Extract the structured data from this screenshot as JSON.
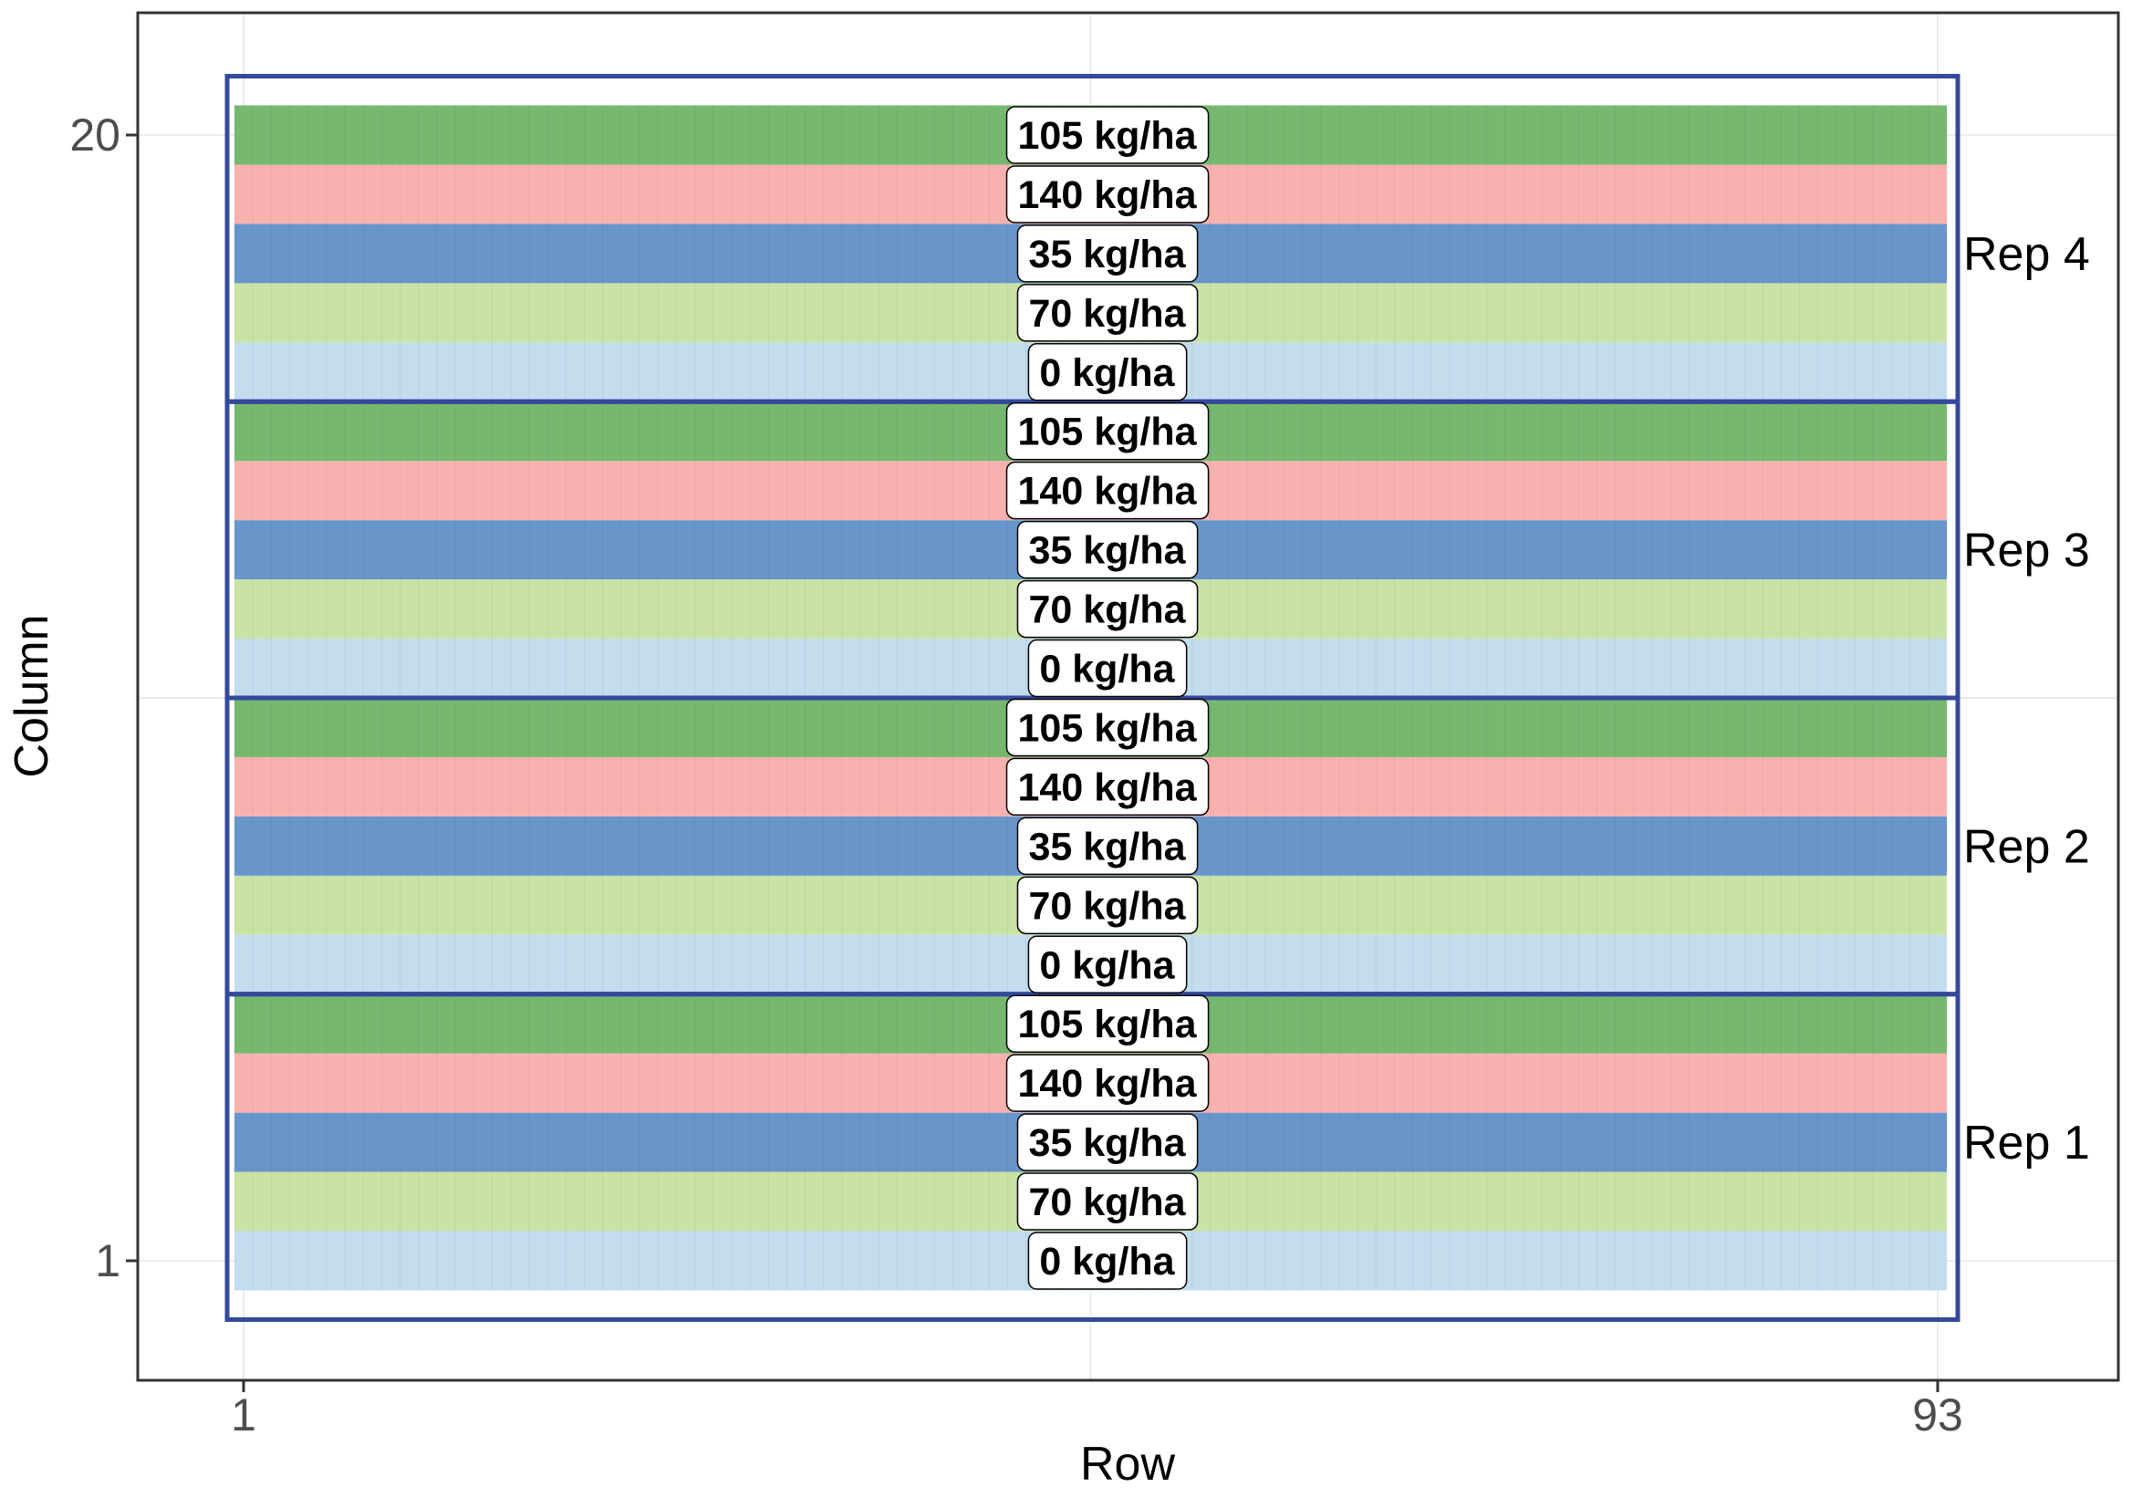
{
  "chart_data": {
    "type": "heatmap",
    "title": "",
    "xlabel": "Row",
    "ylabel": "Column",
    "xlim": [
      1,
      93
    ],
    "ylim": [
      1,
      20
    ],
    "x_ticks": [
      "1",
      "93"
    ],
    "y_ticks": [
      "1",
      "20"
    ],
    "grid": true,
    "legend": "none",
    "rows_per_plot": 93,
    "reps": [
      {
        "name": "Rep 1",
        "columns": [
          1,
          5
        ]
      },
      {
        "name": "Rep 2",
        "columns": [
          6,
          10
        ]
      },
      {
        "name": "Rep 3",
        "columns": [
          11,
          15
        ]
      },
      {
        "name": "Rep 4",
        "columns": [
          16,
          20
        ]
      }
    ],
    "plots": [
      {
        "column": 1,
        "rep": "Rep 1",
        "label": "0 kg/ha",
        "color": "#c3dcee"
      },
      {
        "column": 2,
        "rep": "Rep 1",
        "label": "70 kg/ha",
        "color": "#c9e2a6"
      },
      {
        "column": 3,
        "rep": "Rep 1",
        "label": "35 kg/ha",
        "color": "#6996ca"
      },
      {
        "column": 4,
        "rep": "Rep 1",
        "label": "140 kg/ha",
        "color": "#f7b2b0"
      },
      {
        "column": 5,
        "rep": "Rep 1",
        "label": "105 kg/ha",
        "color": "#76b86f"
      },
      {
        "column": 6,
        "rep": "Rep 2",
        "label": "0 kg/ha",
        "color": "#c3dcee"
      },
      {
        "column": 7,
        "rep": "Rep 2",
        "label": "70 kg/ha",
        "color": "#c9e2a6"
      },
      {
        "column": 8,
        "rep": "Rep 2",
        "label": "35 kg/ha",
        "color": "#6996ca"
      },
      {
        "column": 9,
        "rep": "Rep 2",
        "label": "140 kg/ha",
        "color": "#f7b2b0"
      },
      {
        "column": 10,
        "rep": "Rep 2",
        "label": "105 kg/ha",
        "color": "#76b86f"
      },
      {
        "column": 11,
        "rep": "Rep 3",
        "label": "0 kg/ha",
        "color": "#c3dcee"
      },
      {
        "column": 12,
        "rep": "Rep 3",
        "label": "70 kg/ha",
        "color": "#c9e2a6"
      },
      {
        "column": 13,
        "rep": "Rep 3",
        "label": "35 kg/ha",
        "color": "#6996ca"
      },
      {
        "column": 14,
        "rep": "Rep 3",
        "label": "140 kg/ha",
        "color": "#f7b2b0"
      },
      {
        "column": 15,
        "rep": "Rep 3",
        "label": "105 kg/ha",
        "color": "#76b86f"
      },
      {
        "column": 16,
        "rep": "Rep 4",
        "label": "0 kg/ha",
        "color": "#c3dcee"
      },
      {
        "column": 17,
        "rep": "Rep 4",
        "label": "70 kg/ha",
        "color": "#c9e2a6"
      },
      {
        "column": 18,
        "rep": "Rep 4",
        "label": "35 kg/ha",
        "color": "#6996ca"
      },
      {
        "column": 19,
        "rep": "Rep 4",
        "label": "140 kg/ha",
        "color": "#f7b2b0"
      },
      {
        "column": 20,
        "rep": "Rep 4",
        "label": "105 kg/ha",
        "color": "#76b86f"
      }
    ],
    "rep_outline_color": "#33499b"
  }
}
